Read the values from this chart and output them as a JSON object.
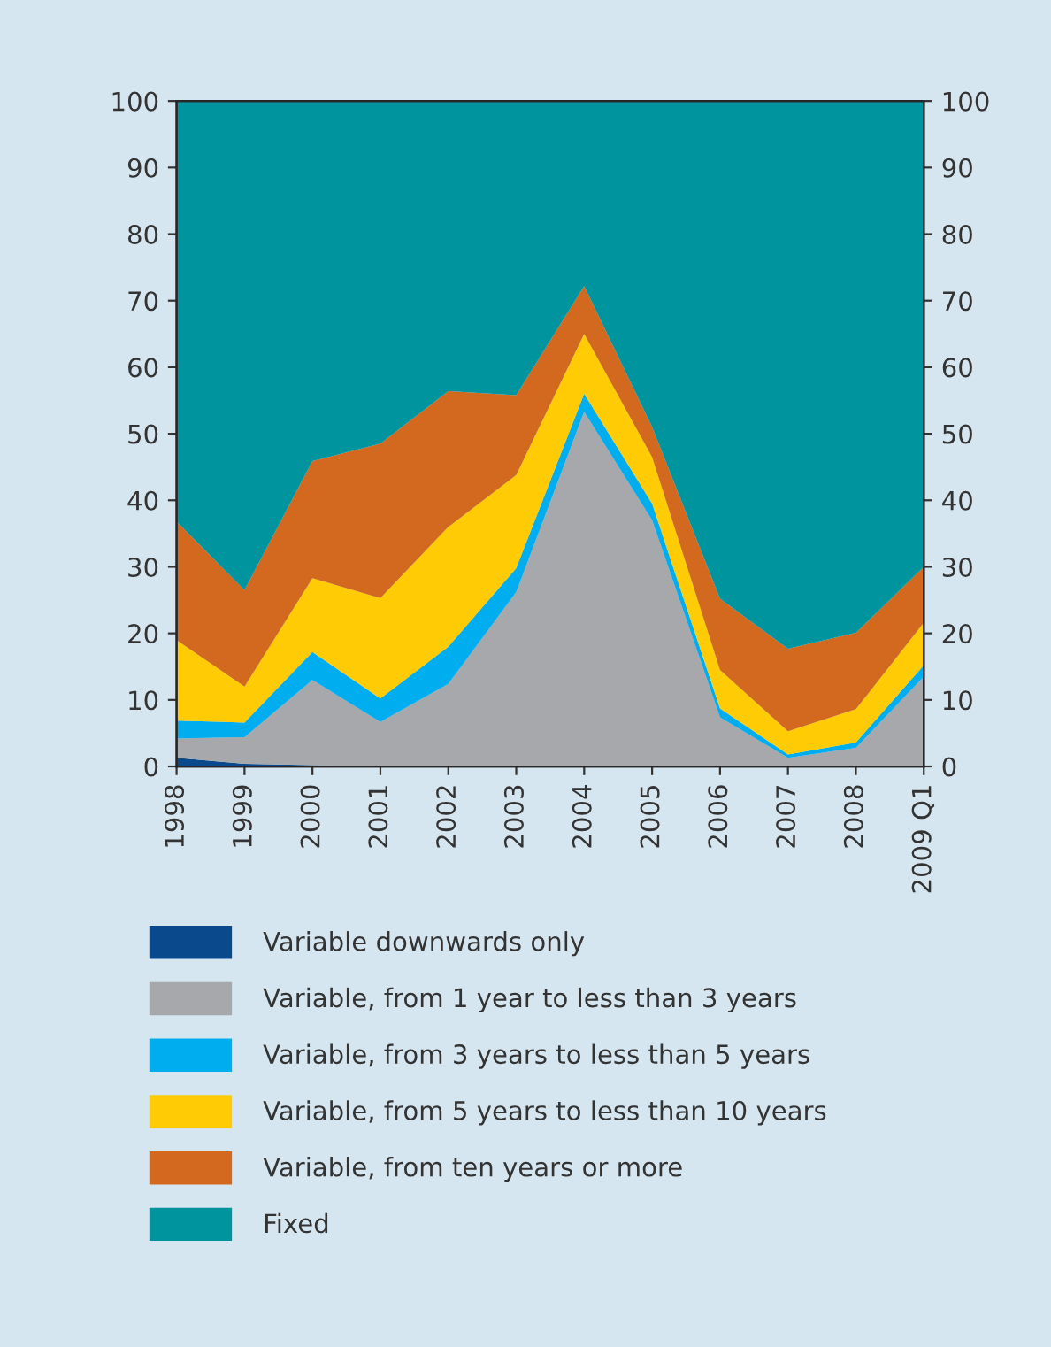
{
  "chart_data": {
    "type": "area",
    "stacked": true,
    "categories": [
      "1998",
      "1999",
      "2000",
      "2001",
      "2002",
      "2003",
      "2004",
      "2005",
      "2006",
      "2007",
      "2008",
      "2009 Q1"
    ],
    "series": [
      {
        "name": "Variable downwards only",
        "color": "#0a4a8c",
        "values": [
          1.3,
          0.4,
          0.2,
          0,
          0,
          0,
          0,
          0,
          0,
          0,
          0,
          0
        ]
      },
      {
        "name": "Variable, from 1 year to less than 3 years",
        "color": "#a6a8ab",
        "values": [
          2.9,
          4.0,
          12.8,
          6.7,
          12.4,
          26.2,
          53.3,
          37,
          7.4,
          1.3,
          2.8,
          13.5
        ]
      },
      {
        "name": "Variable, from 3 years to less than 5 years",
        "color": "#00aeef",
        "values": [
          2.7,
          2.2,
          4.2,
          3.5,
          5.6,
          3.6,
          2.7,
          2.5,
          1.3,
          0.5,
          0.8,
          1.7
        ]
      },
      {
        "name": "Variable, from 5 years to less than 10 years",
        "color": "#ffcb05",
        "values": [
          12.1,
          5.4,
          11.1,
          15.1,
          18,
          14,
          9,
          7,
          5.8,
          3.5,
          5,
          6.4
        ]
      },
      {
        "name": "Variable, from ten years or more",
        "color": "#d2691e",
        "values": [
          17.8,
          14.5,
          17.6,
          23.2,
          20.4,
          12,
          7.2,
          4.5,
          10.7,
          12.4,
          11.5,
          8.4
        ]
      },
      {
        "name": "Fixed",
        "color": "#00959e",
        "values": [
          63.2,
          73.5,
          54.1,
          51.5,
          43.6,
          44.2,
          27.8,
          49,
          74.8,
          82.3,
          79.9,
          70
        ]
      }
    ],
    "ylim": [
      0,
      100
    ],
    "yticks": [
      0,
      10,
      20,
      30,
      40,
      50,
      60,
      70,
      80,
      90,
      100
    ],
    "y2lim": [
      0,
      100
    ],
    "y2ticks": [
      0,
      10,
      20,
      30,
      40,
      50,
      60,
      70,
      80,
      90,
      100
    ],
    "grid": false,
    "legend": "bottom"
  }
}
